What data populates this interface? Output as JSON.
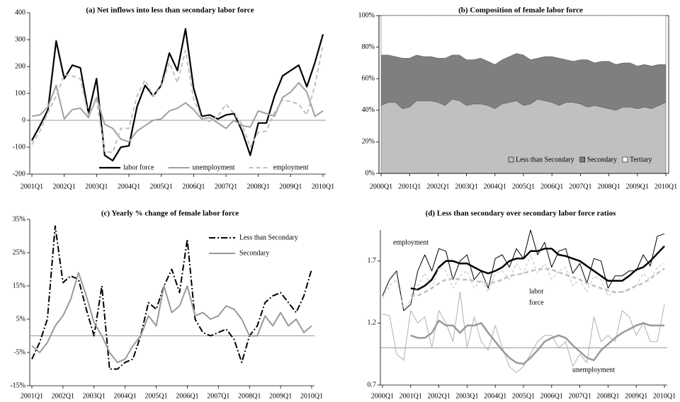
{
  "chart_data": [
    {
      "type": "line",
      "title": "(a) Net inflows into less than secondary labor force",
      "categories": [
        "2001Q1",
        null,
        null,
        null,
        "2002Q1",
        null,
        null,
        null,
        "2003Q1",
        null,
        null,
        null,
        "2004Q1",
        null,
        null,
        null,
        "2005Q1",
        null,
        null,
        null,
        "2006Q1",
        null,
        null,
        null,
        "2007Q1",
        null,
        null,
        null,
        "2008Q1",
        null,
        null,
        null,
        "2009Q1",
        null,
        null,
        null,
        "2010Q1"
      ],
      "series": [
        {
          "name": "labor force",
          "color": "#000000",
          "width": 2.2,
          "values": [
            -75,
            -20,
            40,
            295,
            155,
            205,
            195,
            25,
            155,
            -130,
            -150,
            -100,
            -95,
            50,
            130,
            90,
            130,
            250,
            185,
            340,
            120,
            15,
            20,
            5,
            20,
            25,
            -40,
            -130,
            -10,
            -10,
            90,
            165,
            185,
            205,
            125,
            215,
            320
          ]
        },
        {
          "name": "unemployment",
          "color": "#a0a0a0",
          "width": 2,
          "values": [
            15,
            20,
            50,
            130,
            5,
            40,
            45,
            10,
            85,
            -15,
            -30,
            -70,
            -80,
            -40,
            -20,
            0,
            5,
            35,
            45,
            65,
            40,
            5,
            10,
            -10,
            -30,
            0,
            -20,
            -25,
            35,
            25,
            15,
            85,
            105,
            140,
            105,
            15,
            35
          ]
        },
        {
          "name": "employment",
          "color": "#c0c0c0",
          "width": 2,
          "dash": "6,4",
          "values": [
            -90,
            -40,
            30,
            90,
            170,
            165,
            155,
            15,
            75,
            -115,
            -120,
            -30,
            -30,
            90,
            150,
            90,
            125,
            215,
            140,
            260,
            80,
            10,
            -5,
            15,
            60,
            25,
            -15,
            -100,
            -45,
            -40,
            30,
            75,
            70,
            60,
            20,
            130,
            280
          ]
        }
      ],
      "ylim": [
        -200,
        400
      ],
      "yticks": [
        -200,
        -100,
        0,
        100,
        200,
        300,
        400
      ],
      "hline": 0,
      "legend": "bottom"
    },
    {
      "type": "area",
      "title": "(b) Composition of female labor force",
      "categories": [
        "2000Q1",
        null,
        null,
        null,
        "2001Q1",
        null,
        null,
        null,
        "2002Q1",
        null,
        null,
        null,
        "2003Q1",
        null,
        null,
        null,
        "2004Q1",
        null,
        null,
        null,
        "2005Q1",
        null,
        null,
        null,
        "2006Q1",
        null,
        null,
        null,
        "2007Q1",
        null,
        null,
        null,
        "2008Q1",
        null,
        null,
        null,
        "2009Q1",
        null,
        null,
        null,
        "2010Q1"
      ],
      "series": [
        {
          "name": "Less than Secondary",
          "color": "#c0c0c0",
          "values": [
            43,
            45,
            45,
            41,
            42,
            46,
            46,
            46,
            45,
            43,
            47,
            46,
            43,
            44,
            44,
            43,
            41,
            44,
            45,
            46,
            43,
            44,
            47,
            46,
            45,
            43,
            45,
            45,
            44,
            42,
            43,
            42,
            41,
            40,
            42,
            42,
            41,
            42,
            41,
            43,
            45
          ]
        },
        {
          "name": "Secondary",
          "color": "#7f7f7f",
          "values": [
            32,
            30,
            29,
            32,
            31,
            29,
            28,
            28,
            28,
            30,
            28,
            29,
            29,
            28,
            29,
            28,
            28,
            28,
            29,
            30,
            32,
            28,
            26,
            28,
            29,
            30,
            27,
            26,
            28,
            30,
            27,
            29,
            30,
            29,
            28,
            28,
            27,
            27,
            27,
            26,
            24
          ]
        },
        {
          "name": "Tertiary",
          "color": "#ffffff",
          "values": [
            25,
            25,
            26,
            27,
            27,
            25,
            26,
            26,
            27,
            27,
            25,
            25,
            28,
            28,
            27,
            29,
            31,
            28,
            26,
            24,
            25,
            28,
            27,
            26,
            26,
            27,
            28,
            29,
            28,
            28,
            30,
            29,
            29,
            31,
            30,
            30,
            32,
            31,
            32,
            31,
            31
          ]
        }
      ],
      "ylim": [
        0,
        100
      ],
      "yticks": [
        {
          "value": 0,
          "label": "0%"
        },
        {
          "value": 20,
          "label": "20%"
        },
        {
          "value": 40,
          "label": "40%"
        },
        {
          "value": 60,
          "label": "60%"
        },
        {
          "value": 80,
          "label": "80%"
        },
        {
          "value": 100,
          "label": "100%"
        }
      ],
      "legend": "lower right"
    },
    {
      "type": "line",
      "title": "(c) Yearly % change of female labor force",
      "categories": [
        "2001Q1",
        null,
        null,
        null,
        "2002Q1",
        null,
        null,
        null,
        "2003Q1",
        null,
        null,
        null,
        "2004Q1",
        null,
        null,
        null,
        "2005Q1",
        null,
        null,
        null,
        "2006Q1",
        null,
        null,
        null,
        "2007Q1",
        null,
        null,
        null,
        "2008Q1",
        null,
        null,
        null,
        "2009Q1",
        null,
        null,
        null,
        "2010Q1"
      ],
      "series": [
        {
          "name": "Less than Secondary",
          "color": "#000000",
          "width": 2,
          "dash": "9,3,2,3",
          "values": [
            -7,
            -2,
            5,
            33,
            16,
            18,
            17,
            8,
            0,
            15,
            -10,
            -10,
            -8,
            -7,
            0,
            10,
            8,
            15,
            20,
            13,
            29,
            5,
            1,
            0,
            1,
            2,
            -1,
            -8,
            0,
            3,
            10,
            12,
            13,
            10,
            7,
            12,
            20
          ]
        },
        {
          "name": "Secondary",
          "color": "#999999",
          "width": 2,
          "values": [
            -3,
            -5,
            -2,
            3,
            6,
            11,
            19,
            12,
            4,
            0,
            -5,
            -8,
            -7,
            -3,
            0,
            6,
            3,
            15,
            7,
            9,
            15,
            6,
            7,
            5,
            6,
            9,
            8,
            5,
            0,
            0,
            6,
            3,
            7,
            3,
            5,
            1,
            3
          ]
        }
      ],
      "ylim": [
        -15,
        35
      ],
      "yticks": [
        {
          "value": -15,
          "label": "-15%"
        },
        {
          "value": -5,
          "label": "-5%"
        },
        {
          "value": 5,
          "label": "5%"
        },
        {
          "value": 15,
          "label": "15%"
        },
        {
          "value": 25,
          "label": "25%"
        },
        {
          "value": 35,
          "label": "35%"
        }
      ],
      "hline": 0,
      "legend": "upper right"
    },
    {
      "type": "line",
      "title": "(d) Less than secondary over secondary labor force ratios",
      "categories": [
        "2000Q1",
        null,
        null,
        null,
        "2001Q1",
        null,
        null,
        null,
        "2002Q1",
        null,
        null,
        null,
        "2003Q1",
        null,
        null,
        null,
        "2004Q1",
        null,
        null,
        null,
        "2005Q1",
        null,
        null,
        null,
        "2006Q1",
        null,
        null,
        null,
        "2007Q1",
        null,
        null,
        null,
        "2008Q1",
        null,
        null,
        null,
        "2009Q1",
        null,
        null,
        null,
        "2010Q1"
      ],
      "series": [
        {
          "color": "#000000",
          "width": 1,
          "values": [
            1.42,
            1.55,
            1.62,
            1.3,
            1.35,
            1.62,
            1.75,
            1.62,
            1.8,
            1.78,
            1.55,
            1.7,
            1.75,
            1.55,
            1.62,
            1.48,
            1.72,
            1.75,
            1.65,
            1.8,
            1.72,
            1.95,
            1.75,
            1.85,
            1.65,
            1.78,
            1.8,
            1.6,
            1.68,
            1.52,
            1.72,
            1.7,
            1.48,
            1.58,
            1.58,
            1.62,
            1.62,
            1.75,
            1.66,
            1.9,
            1.92
          ]
        },
        {
          "color": "#000000",
          "width": 2.5,
          "values": [
            null,
            null,
            null,
            null,
            1.48,
            1.47,
            1.5,
            1.55,
            1.65,
            1.7,
            1.7,
            1.68,
            1.68,
            1.65,
            1.62,
            1.6,
            1.62,
            1.65,
            1.7,
            1.72,
            1.72,
            1.78,
            1.78,
            1.8,
            1.8,
            1.75,
            1.74,
            1.72,
            1.7,
            1.66,
            1.62,
            1.58,
            1.54,
            1.54,
            1.54,
            1.58,
            1.63,
            1.65,
            1.7,
            1.76,
            1.82
          ]
        },
        {
          "color": "#c0c0c0",
          "width": 1,
          "dash": "4,3",
          "values": [
            1.4,
            1.5,
            1.55,
            1.32,
            1.38,
            1.5,
            1.6,
            1.48,
            1.65,
            1.62,
            1.48,
            1.58,
            1.62,
            1.48,
            1.55,
            1.45,
            1.6,
            1.62,
            1.55,
            1.68,
            1.6,
            1.75,
            1.6,
            1.68,
            1.55,
            1.62,
            1.65,
            1.5,
            1.55,
            1.45,
            1.58,
            1.55,
            1.42,
            1.45,
            1.45,
            1.48,
            1.5,
            1.6,
            1.55,
            1.65,
            1.68
          ]
        },
        {
          "color": "#c0c0c0",
          "width": 2.5,
          "dash": "6,4",
          "values": [
            null,
            null,
            null,
            null,
            1.42,
            1.42,
            1.45,
            1.48,
            1.52,
            1.55,
            1.56,
            1.55,
            1.55,
            1.54,
            1.53,
            1.52,
            1.53,
            1.55,
            1.58,
            1.59,
            1.6,
            1.62,
            1.63,
            1.64,
            1.63,
            1.61,
            1.59,
            1.57,
            1.55,
            1.52,
            1.5,
            1.48,
            1.46,
            1.45,
            1.45,
            1.47,
            1.5,
            1.52,
            1.56,
            1.6,
            1.64
          ]
        },
        {
          "color": "#b0b0b0",
          "width": 1,
          "values": [
            1.27,
            1.26,
            0.95,
            0.9,
            1.3,
            1.2,
            1.25,
            1.0,
            1.3,
            1.2,
            1.05,
            1.45,
            1.0,
            1.25,
            1.05,
            0.98,
            1.18,
            1.0,
            0.85,
            0.8,
            0.85,
            0.95,
            1.05,
            1.1,
            1.1,
            1.0,
            1.05,
            0.85,
            0.95,
            0.88,
            1.25,
            1.05,
            1.1,
            1.05,
            1.3,
            1.25,
            1.1,
            1.2,
            1.05,
            1.05,
            1.35
          ]
        },
        {
          "color": "#999999",
          "width": 2.5,
          "values": [
            null,
            null,
            null,
            null,
            1.1,
            1.08,
            1.08,
            1.12,
            1.22,
            1.18,
            1.18,
            1.12,
            1.18,
            1.18,
            1.2,
            1.12,
            1.05,
            0.98,
            0.92,
            0.88,
            0.87,
            0.92,
            0.98,
            1.05,
            1.08,
            1.1,
            1.08,
            1.02,
            0.97,
            0.92,
            0.9,
            0.98,
            1.03,
            1.08,
            1.12,
            1.15,
            1.18,
            1.2,
            1.18,
            1.18,
            1.18
          ]
        }
      ],
      "ylim": [
        0.7,
        1.95
      ],
      "yticks": [
        0.7,
        1.2,
        1.7
      ],
      "hline": 1,
      "annotations": [
        "employment",
        "labor",
        "force",
        "unemployment"
      ]
    }
  ]
}
